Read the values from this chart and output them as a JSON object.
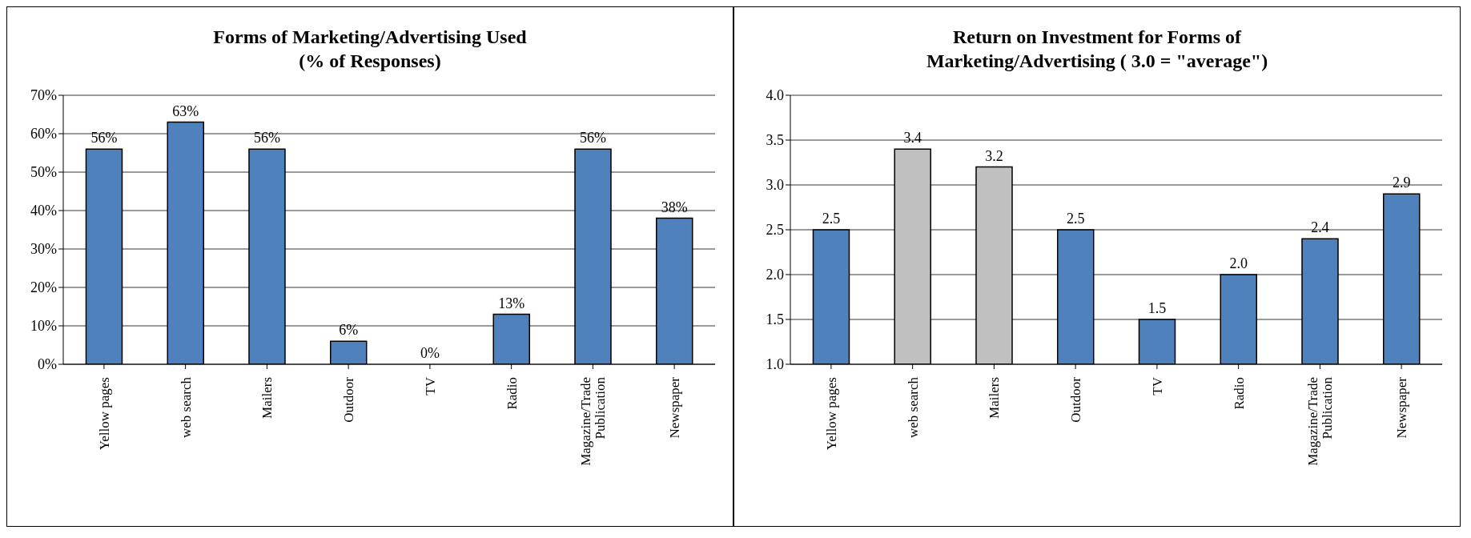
{
  "chart_data": [
    {
      "type": "bar",
      "title": "Forms of Marketing/Advertising Used\n(% of Responses)",
      "categories": [
        "Yellow pages",
        "web search",
        "Mailers",
        "Outdoor",
        "TV",
        "Radio",
        "Magazine/Trade Publication",
        "Newspaper"
      ],
      "values": [
        56,
        63,
        56,
        6,
        0,
        13,
        56,
        38
      ],
      "value_labels": [
        "56%",
        "63%",
        "56%",
        "6%",
        "0%",
        "13%",
        "56%",
        "38%"
      ],
      "color": "#4f81bd",
      "ylim": [
        0,
        70
      ],
      "yticks": [
        {
          "value": 0,
          "label": "0%"
        },
        {
          "value": 10,
          "label": "10%"
        },
        {
          "value": 20,
          "label": "20%"
        },
        {
          "value": 30,
          "label": "30%"
        },
        {
          "value": 40,
          "label": "40%"
        },
        {
          "value": 50,
          "label": "50%"
        },
        {
          "value": 60,
          "label": "60%"
        },
        {
          "value": 70,
          "label": "70%"
        }
      ],
      "grid": "y",
      "legend": false
    },
    {
      "type": "bar",
      "title": "Return on Investment for Forms of\nMarketing/Advertising ( 3.0 = \"average\")",
      "categories": [
        "Yellow pages",
        "web search",
        "Mailers",
        "Outdoor",
        "TV",
        "Radio",
        "Magazine/Trade Publication",
        "Newspaper"
      ],
      "values": [
        2.5,
        3.4,
        3.2,
        2.5,
        1.5,
        2.0,
        2.4,
        2.9
      ],
      "value_labels": [
        "2.5",
        "3.4",
        "3.2",
        "2.5",
        "1.5",
        "2.0",
        "2.4",
        "2.9"
      ],
      "colors": [
        "#4f81bd",
        "#c0c0c0",
        "#c0c0c0",
        "#4f81bd",
        "#4f81bd",
        "#4f81bd",
        "#4f81bd",
        "#4f81bd"
      ],
      "ylim": [
        1,
        4
      ],
      "yticks": [
        {
          "value": 1,
          "label": "1.0"
        },
        {
          "value": 1.5,
          "label": "1.5"
        },
        {
          "value": 2,
          "label": "2.0"
        },
        {
          "value": 2.5,
          "label": "2.5"
        },
        {
          "value": 3,
          "label": "3.0"
        },
        {
          "value": 3.5,
          "label": "3.5"
        },
        {
          "value": 4,
          "label": "4.0"
        }
      ],
      "grid": "y",
      "legend": false
    }
  ]
}
